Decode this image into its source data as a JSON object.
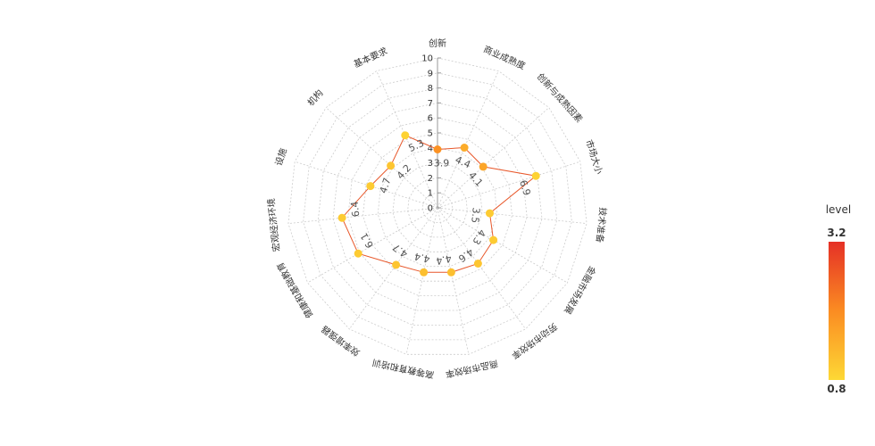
{
  "chart_data": {
    "type": "radar",
    "categories": [
      "创新",
      "商业成熟度",
      "创新与成熟因素",
      "市场大小",
      "技术准备",
      "金融市场发展",
      "劳动市场效率",
      "商品市场效率",
      "高等教育和培训",
      "效率增强器",
      "健康和基础教育",
      "宏观经济环境",
      "设施",
      "机构",
      "基本要求"
    ],
    "values": [
      3.9,
      4.4,
      4.1,
      6.9,
      3.5,
      4.3,
      4.6,
      4.4,
      4.4,
      4.7,
      6.1,
      6.4,
      4.7,
      4.2,
      5.3
    ],
    "value_labels": [
      "3.9",
      "4.4",
      "4.1",
      "6.9",
      "3.5",
      "4.3",
      "4.6",
      "4.4",
      "4.4",
      "4.7",
      "6.1",
      "6.4",
      "4.7",
      "4.2",
      "5.3"
    ],
    "levels": [
      1.9,
      1.5,
      1.6,
      0.9,
      1.0,
      1.0,
      1.1,
      1.2,
      1.2,
      1.1,
      1.0,
      1.0,
      1.0,
      1.1,
      0.9
    ],
    "rlim": [
      0,
      10
    ],
    "r_ticks": [
      "0",
      "1",
      "2",
      "3",
      "4",
      "5",
      "6",
      "7",
      "8",
      "9",
      "10"
    ],
    "grid": true,
    "line_color": "#e8572a",
    "legend": {
      "title": "level",
      "max_label": "3.2",
      "min_label": "0.8",
      "min": 0.8,
      "max": 3.2,
      "colors": [
        "#fdd835",
        "#fb8c22",
        "#e53026"
      ],
      "placement": "right"
    }
  }
}
